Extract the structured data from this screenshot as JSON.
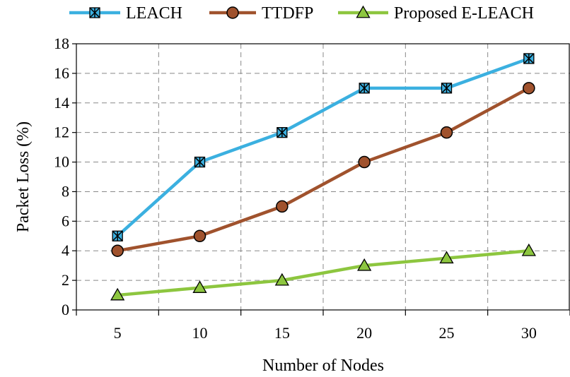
{
  "chart_data": {
    "type": "line",
    "title": "",
    "xlabel": "Number of Nodes",
    "ylabel": "Packet Loss (%)",
    "x": [
      5,
      10,
      15,
      20,
      25,
      30
    ],
    "x_tick_labels": [
      "5",
      "10",
      "15",
      "20",
      "25",
      "30"
    ],
    "ylim": [
      0,
      18
    ],
    "y_ticks": [
      0,
      2,
      4,
      6,
      8,
      10,
      12,
      14,
      16,
      18
    ],
    "y_tick_labels": [
      "0",
      "2",
      "4",
      "6",
      "8",
      "10",
      "12",
      "14",
      "16",
      "18"
    ],
    "grid": "dashed",
    "legend_position": "top",
    "series": [
      {
        "name": "LEACH",
        "values": [
          5,
          10,
          12,
          15,
          15,
          17
        ],
        "color": "#3bb0e0",
        "marker": "asterisk-square"
      },
      {
        "name": "TTDFP",
        "values": [
          4,
          5,
          7,
          10,
          12,
          15
        ],
        "color": "#a0522d",
        "marker": "circle"
      },
      {
        "name": "Proposed E-LEACH",
        "values": [
          1,
          1.5,
          2,
          3,
          3.5,
          4
        ],
        "color": "#8dc63f",
        "marker": "triangle"
      }
    ]
  }
}
